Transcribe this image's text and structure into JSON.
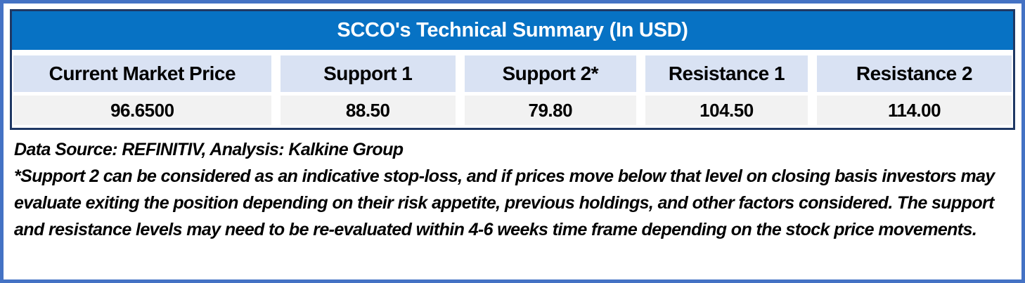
{
  "table": {
    "title": "SCCO's Technical Summary (In USD)",
    "columns": [
      {
        "label": "Current Market Price",
        "value": "96.6500"
      },
      {
        "label": "Support 1",
        "value": "88.50"
      },
      {
        "label": "Support 2*",
        "value": "79.80"
      },
      {
        "label": "Resistance 1",
        "value": "104.50"
      },
      {
        "label": "Resistance 2",
        "value": "114.00"
      }
    ]
  },
  "footnotes": {
    "source_line": "Data Source: REFINITIV, Analysis: Kalkine Group",
    "disclaimer": "*Support 2 can be considered as an indicative stop-loss, and if prices move below that level on closing basis investors may evaluate exiting the position depending on their risk appetite, previous holdings, and other factors considered. The support and resistance levels may need to be re-evaluated within 4-6 weeks time frame depending on the stock price movements."
  },
  "colors": {
    "title_bg": "#0772C4",
    "title_text": "#FFFFFF",
    "header_bg": "#D9E2F3",
    "value_bg": "#F2F2F2",
    "frame_border": "#4472C4",
    "table_border": "#1F3864",
    "body_text": "#000000"
  },
  "chart_data": {
    "type": "table",
    "title": "SCCO's Technical Summary (In USD)",
    "categories": [
      "Current Market Price",
      "Support 1",
      "Support 2*",
      "Resistance 1",
      "Resistance 2"
    ],
    "values": [
      96.65,
      88.5,
      79.8,
      104.5,
      114.0
    ],
    "value_labels": [
      "96.6500",
      "88.50",
      "79.80",
      "104.50",
      "114.00"
    ],
    "source": "Data Source: REFINITIV, Analysis: Kalkine Group",
    "note": "*Support 2 can be considered as an indicative stop-loss, and if prices move below that level on closing basis investors may evaluate exiting the position depending on their risk appetite, previous holdings, and other factors considered. The support and resistance levels may need to be re-evaluated within 4-6 weeks time frame depending on the stock price movements."
  }
}
